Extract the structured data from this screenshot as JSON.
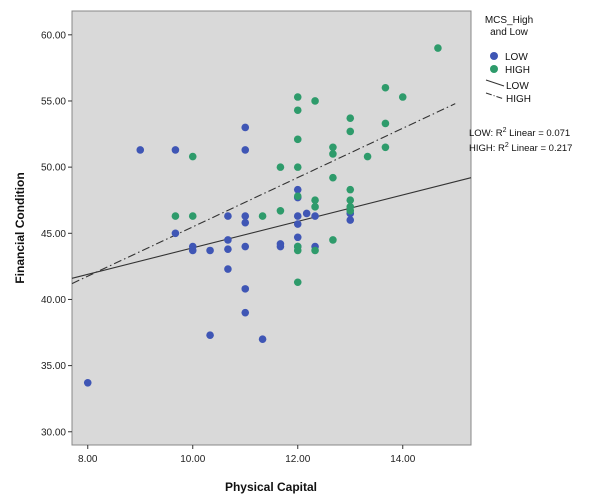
{
  "chart_data": {
    "type": "scatter",
    "xlabel": "Physical Capital",
    "ylabel": "Financial Condition",
    "xlim": [
      7.7,
      15.3
    ],
    "ylim": [
      29.0,
      61.8
    ],
    "x_ticks": [
      8,
      10,
      12,
      14
    ],
    "x_tick_labels": [
      "8.00",
      "10.00",
      "12.00",
      "14.00"
    ],
    "y_ticks": [
      30,
      35,
      40,
      45,
      50,
      55,
      60
    ],
    "y_tick_labels": [
      "30.00",
      "35.00",
      "40.00",
      "45.00",
      "50.00",
      "55.00",
      "60.00"
    ],
    "background": "#d9d9d9",
    "legend": {
      "title_line1": "MCS_High",
      "title_line2": "and Low",
      "placement": "right",
      "marker_low_label": "LOW",
      "marker_high_label": "HIGH",
      "line_low_label": "LOW",
      "line_high_label": "HIGH"
    },
    "r2": {
      "low_prefix": "LOW: R",
      "low_sup": "2",
      "low_suffix": " Linear = 0.071",
      "high_prefix": "HIGH: R",
      "high_sup": "2",
      "high_suffix": " Linear = 0.217"
    },
    "series": [
      {
        "name": "LOW",
        "color": "#3f56b5",
        "points": [
          [
            8.0,
            33.7
          ],
          [
            9.0,
            51.3
          ],
          [
            9.67,
            51.3
          ],
          [
            9.67,
            45.0
          ],
          [
            10.0,
            44.0
          ],
          [
            10.0,
            43.7
          ],
          [
            10.33,
            43.7
          ],
          [
            10.33,
            37.3
          ],
          [
            10.67,
            46.3
          ],
          [
            10.67,
            44.5
          ],
          [
            10.67,
            43.8
          ],
          [
            10.67,
            42.3
          ],
          [
            11.0,
            53.0
          ],
          [
            11.0,
            51.3
          ],
          [
            11.0,
            46.3
          ],
          [
            11.0,
            45.8
          ],
          [
            11.0,
            44.0
          ],
          [
            11.0,
            40.8
          ],
          [
            11.0,
            39.0
          ],
          [
            11.33,
            37.0
          ],
          [
            11.67,
            44.2
          ],
          [
            11.67,
            44.0
          ],
          [
            12.0,
            48.3
          ],
          [
            12.0,
            47.7
          ],
          [
            12.0,
            46.3
          ],
          [
            12.0,
            45.7
          ],
          [
            12.0,
            44.7
          ],
          [
            12.0,
            44.0
          ],
          [
            12.17,
            46.5
          ],
          [
            12.33,
            46.3
          ],
          [
            12.33,
            44.0
          ],
          [
            13.0,
            46.5
          ],
          [
            13.0,
            46.0
          ]
        ]
      },
      {
        "name": "HIGH",
        "color": "#2e9b6b",
        "points": [
          [
            9.67,
            46.3
          ],
          [
            10.0,
            50.8
          ],
          [
            10.0,
            46.3
          ],
          [
            11.33,
            46.3
          ],
          [
            11.67,
            50.0
          ],
          [
            11.67,
            46.7
          ],
          [
            12.0,
            55.3
          ],
          [
            12.0,
            54.3
          ],
          [
            12.0,
            52.1
          ],
          [
            12.0,
            50.0
          ],
          [
            12.0,
            47.8
          ],
          [
            12.0,
            44.0
          ],
          [
            12.0,
            43.7
          ],
          [
            12.0,
            41.3
          ],
          [
            12.33,
            55.0
          ],
          [
            12.33,
            47.5
          ],
          [
            12.33,
            47.0
          ],
          [
            12.33,
            43.7
          ],
          [
            12.67,
            51.5
          ],
          [
            12.67,
            51.0
          ],
          [
            12.67,
            49.2
          ],
          [
            12.67,
            44.5
          ],
          [
            13.0,
            53.7
          ],
          [
            13.0,
            52.7
          ],
          [
            13.0,
            48.3
          ],
          [
            13.0,
            47.5
          ],
          [
            13.0,
            47.0
          ],
          [
            13.0,
            46.7
          ],
          [
            13.33,
            50.8
          ],
          [
            13.67,
            56.0
          ],
          [
            13.67,
            53.3
          ],
          [
            13.67,
            51.5
          ],
          [
            14.0,
            55.3
          ],
          [
            14.67,
            59.0
          ]
        ]
      }
    ],
    "fit_lines": [
      {
        "name": "LOW",
        "style": "solid",
        "color": "#333333",
        "x0": 7.7,
        "y0": 41.6,
        "x1": 15.3,
        "y1": 49.2
      },
      {
        "name": "HIGH",
        "style": "dashdot",
        "color": "#333333",
        "x0": 7.7,
        "y0": 41.2,
        "x1": 15.0,
        "y1": 54.8
      }
    ]
  }
}
